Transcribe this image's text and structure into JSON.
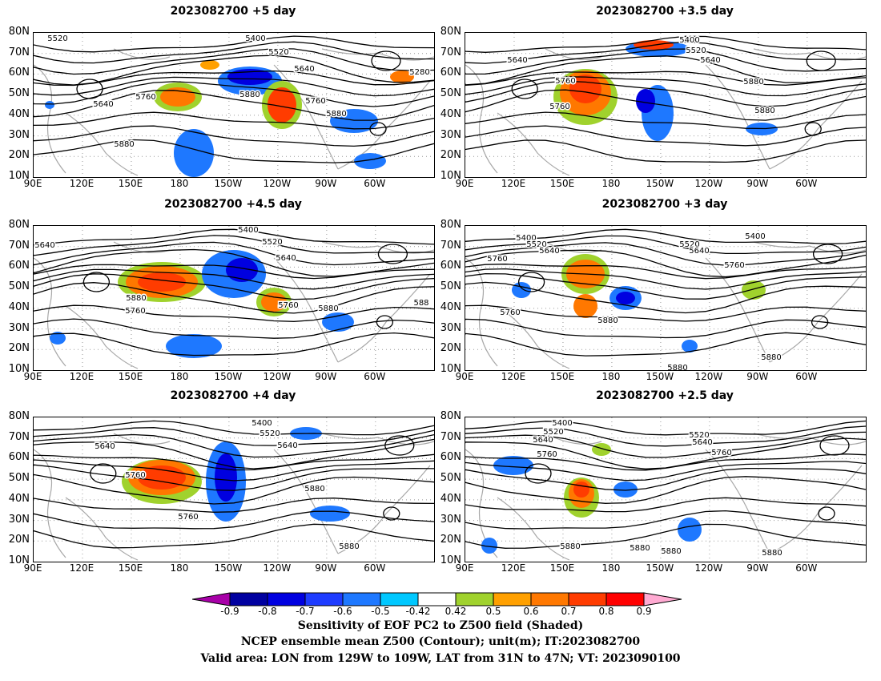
{
  "panels": [
    {
      "title": "2023082700  +5 day",
      "contours": [
        "5520",
        "5400",
        "5520",
        "5640",
        "5280",
        "5640",
        "5760",
        "5880",
        "5760",
        "5880",
        "5880"
      ]
    },
    {
      "title": "2023082700  +3.5 day",
      "contours": [
        "5400",
        "5520",
        "5640",
        "5640",
        "5760",
        "5880",
        "5760",
        "5880"
      ]
    },
    {
      "title": "2023082700  +4.5 day",
      "contours": [
        "5400",
        "5640",
        "5520",
        "5640",
        "5760",
        "5880",
        "5760",
        "5880",
        "588"
      ]
    },
    {
      "title": "2023082700  +3 day",
      "contours": [
        "5400",
        "5520",
        "5640",
        "5760",
        "5520",
        "5640",
        "5400",
        "5760",
        "5760",
        "5880",
        "5880",
        "5880"
      ]
    },
    {
      "title": "2023082700  +4 day",
      "contours": [
        "5400",
        "5520",
        "5640",
        "5640",
        "5760",
        "5880",
        "5760",
        "5880"
      ]
    },
    {
      "title": "2023082700  +2.5 day",
      "contours": [
        "5400",
        "5520",
        "5640",
        "5760",
        "5520",
        "5640",
        "5760",
        "5880",
        "5880",
        "5880",
        "5880"
      ]
    }
  ],
  "lat_ticks": [
    "80N",
    "70N",
    "60N",
    "50N",
    "40N",
    "30N",
    "20N",
    "10N"
  ],
  "lon_ticks": [
    "90E",
    "120E",
    "150E",
    "180",
    "150W",
    "120W",
    "90W",
    "60W"
  ],
  "colorbar": {
    "labels": [
      "-0.9",
      "-0.8",
      "-0.7",
      "-0.6",
      "-0.5",
      "-0.42",
      "0.42",
      "0.5",
      "0.6",
      "0.7",
      "0.8",
      "0.9"
    ],
    "colors": [
      "#a800a8",
      "#0000a0",
      "#0000e0",
      "#1e3cff",
      "#1e78ff",
      "#00c8ff",
      "#ffffff",
      "#a0d22d",
      "#ffa000",
      "#ff7800",
      "#ff3c00",
      "#ff0000",
      "#ffaad2"
    ]
  },
  "caption": {
    "line1": "Sensitivity of EOF PC2 to Z500 field (Shaded)",
    "line2": "NCEP ensemble mean Z500 (Contour); unit(m); IT:2023082700",
    "line3": "Valid area: LON from 129W to 109W, LAT from 31N to 47N; VT: 2023090100"
  }
}
